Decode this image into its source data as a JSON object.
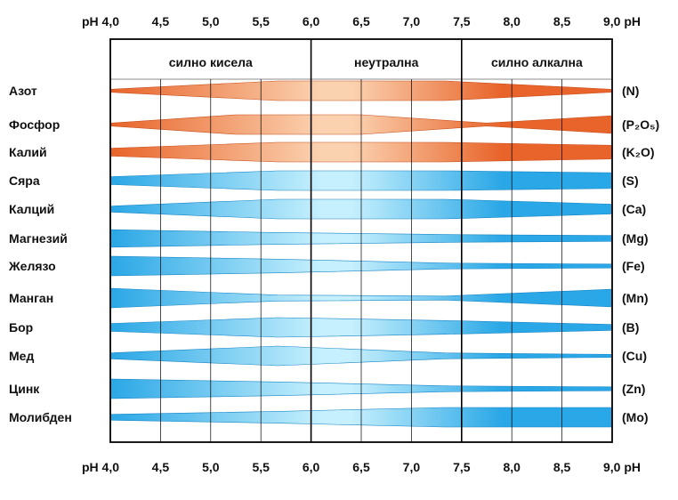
{
  "chart_data": {
    "type": "band-chart",
    "title": "",
    "x_axis": {
      "ticks": [
        "pH 4,0",
        "4,5",
        "5,0",
        "5,5",
        "6,0",
        "6,5",
        "7,0",
        "7,5",
        "8,0",
        "8,5",
        "9,0 pH"
      ],
      "range": [
        4.0,
        9.0
      ]
    },
    "zones": [
      {
        "label": "силно кисела",
        "from": 4.0,
        "to": 6.0
      },
      {
        "label": "неутрална",
        "from": 6.0,
        "to": 7.5
      },
      {
        "label": "силно алкална",
        "from": 7.5,
        "to": 9.0
      }
    ],
    "nutrients": [
      {
        "name": "Азот",
        "symbol": "(N)",
        "group": "orange",
        "widths": [
          0.15,
          1.0,
          1.0,
          0.15
        ]
      },
      {
        "name": "Фосфор",
        "symbol": "(P₂O₅)",
        "group": "orange",
        "widths": [
          0.15,
          1.0,
          1.0,
          0.15,
          0.9
        ]
      },
      {
        "name": "Калий",
        "symbol": "(K₂O)",
        "group": "orange",
        "widths": [
          0.4,
          1.0,
          1.0,
          0.7
        ]
      },
      {
        "name": "Сяра",
        "symbol": "(S)",
        "group": "blue",
        "widths": [
          0.4,
          1.0,
          1.0,
          0.8
        ]
      },
      {
        "name": "Калций",
        "symbol": "(Ca)",
        "group": "blue",
        "widths": [
          0.3,
          1.0,
          1.0,
          0.5
        ]
      },
      {
        "name": "Магнезий",
        "symbol": "(Mg)",
        "group": "blue",
        "widths": [
          0.9,
          0.6,
          0.4,
          0.3
        ]
      },
      {
        "name": "Желязо",
        "symbol": "(Fe)",
        "group": "blue",
        "widths": [
          1.0,
          0.7,
          0.3,
          0.2
        ]
      },
      {
        "name": "Манган",
        "symbol": "(Mn)",
        "group": "blue",
        "widths": [
          1.0,
          0.3,
          0.2,
          0.9
        ]
      },
      {
        "name": "Бор",
        "symbol": "(B)",
        "group": "blue",
        "widths": [
          0.4,
          1.0,
          0.7,
          0.3
        ]
      },
      {
        "name": "Мед",
        "symbol": "(Cu)",
        "group": "blue",
        "widths": [
          0.3,
          1.0,
          0.3,
          0.15
        ]
      },
      {
        "name": "Цинк",
        "symbol": "(Zn)",
        "group": "blue",
        "widths": [
          1.0,
          0.7,
          0.3,
          0.2
        ]
      },
      {
        "name": "Молибден",
        "symbol": "(Mo)",
        "group": "blue",
        "widths": [
          0.3,
          0.6,
          1.0,
          1.0
        ]
      }
    ],
    "colors": {
      "orange_edge": "#e8642a",
      "orange_mid": "#fbd2b0",
      "blue_edge": "#2aa7e6",
      "blue_mid": "#c6f0fd",
      "grid": "#000000"
    }
  }
}
